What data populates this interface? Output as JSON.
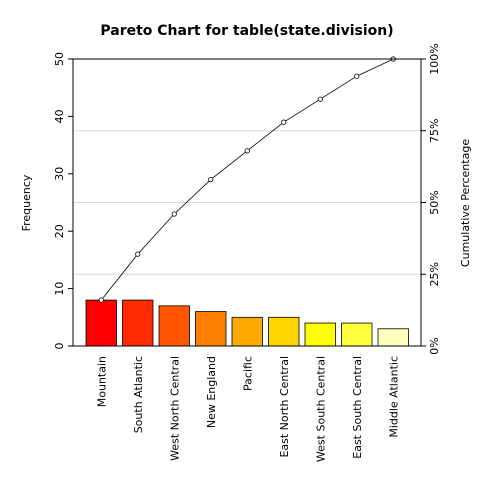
{
  "chart_data": {
    "type": "bar",
    "title": "Pareto Chart for table(state.division)",
    "xlabel": "",
    "ylabel": "Frequency",
    "y2label": "Cumulative Percentage",
    "categories": [
      "Mountain",
      "South Atlantic",
      "West North Central",
      "New England",
      "Pacific",
      "East North Central",
      "West South Central",
      "East South Central",
      "Middle Atlantic"
    ],
    "values": [
      8,
      8,
      7,
      6,
      5,
      5,
      4,
      4,
      3
    ],
    "cumulative_percent": [
      16,
      32,
      46,
      58,
      68,
      78,
      86,
      94,
      100
    ],
    "ylim": [
      0,
      50
    ],
    "y_ticks": [
      "0",
      "10",
      "20",
      "30",
      "40",
      "50"
    ],
    "y2lim": [
      0,
      100
    ],
    "y2_ticks": [
      "0%",
      "25%",
      "50%",
      "75%",
      "100%"
    ],
    "grid": "horizontal lines at cumulative percentage ticks",
    "bar_colors": [
      "#FF0000",
      "#FF2A00",
      "#FF5500",
      "#FF8000",
      "#FFAA00",
      "#FFD500",
      "#FFFF00",
      "#FFFF40",
      "#FFFFBF"
    ],
    "line_color": "#000000",
    "grid_color": "#d9d9d9"
  }
}
